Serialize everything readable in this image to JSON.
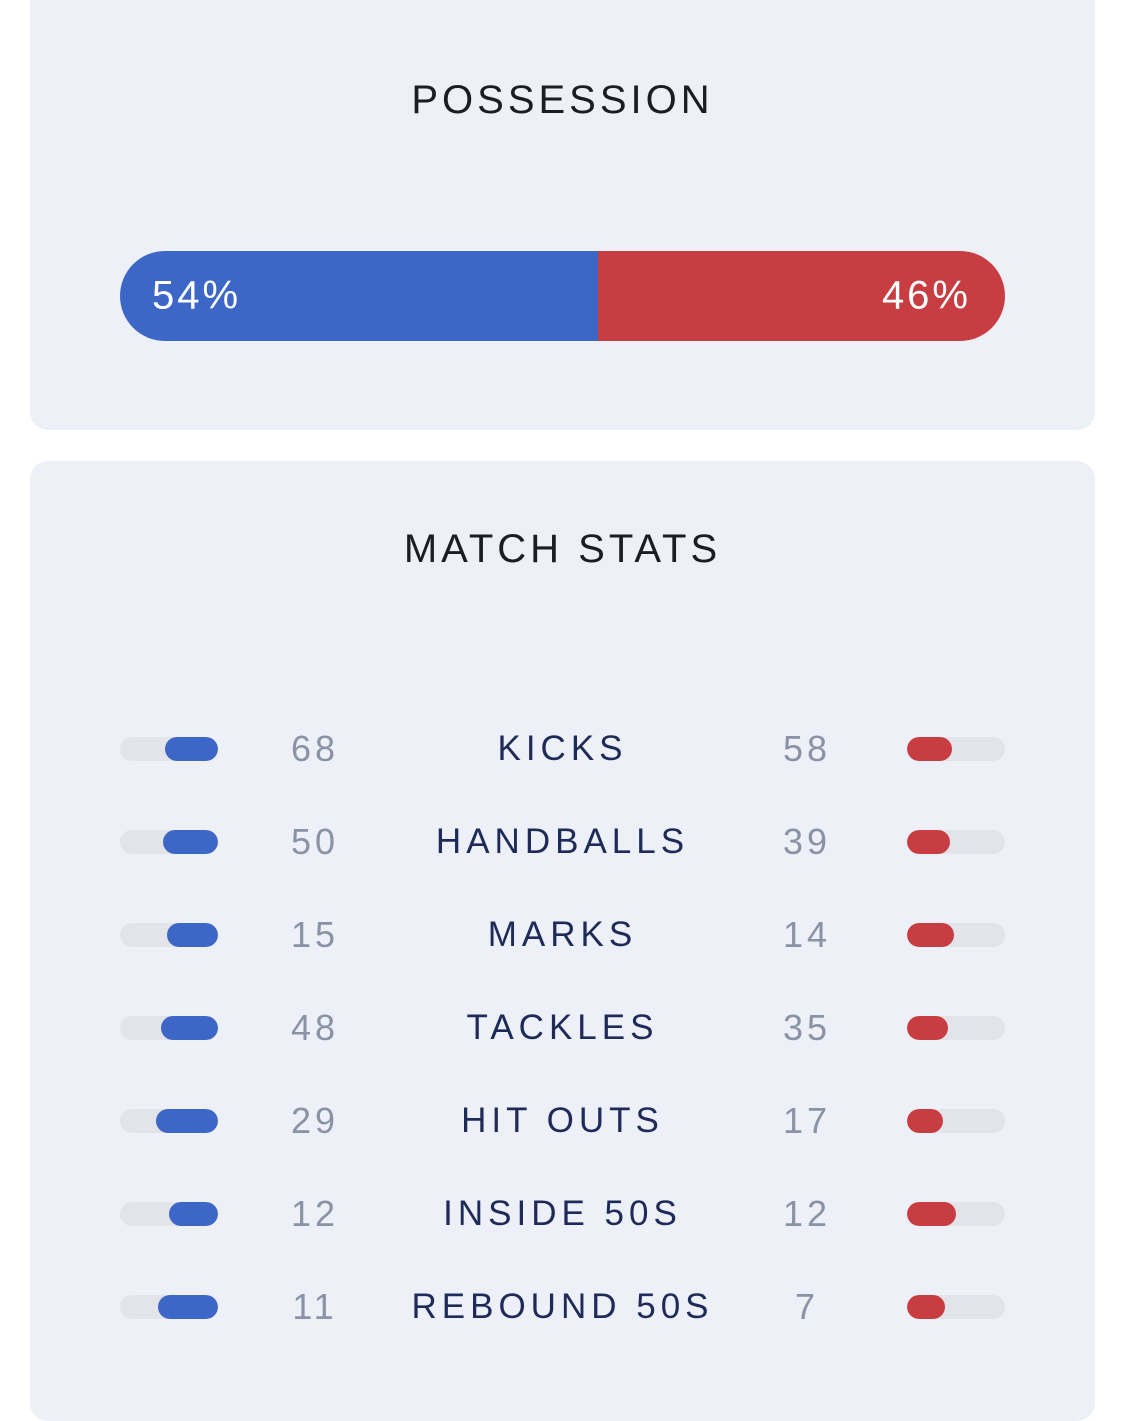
{
  "colors": {
    "home": "#3d67c6",
    "away": "#c73d41",
    "card_background": "#edf0f7"
  },
  "possession": {
    "title": "POSSESSION",
    "home_pct": 54,
    "away_pct": 46,
    "home_label": "54%",
    "away_label": "46%"
  },
  "match_stats": {
    "title": "MATCH STATS",
    "rows": [
      {
        "label": "KICKS",
        "home": "68",
        "away": "58",
        "home_fill": 0.54,
        "away_fill": 0.46
      },
      {
        "label": "HANDBALLS",
        "home": "50",
        "away": "39",
        "home_fill": 0.56,
        "away_fill": 0.44
      },
      {
        "label": "MARKS",
        "home": "15",
        "away": "14",
        "home_fill": 0.52,
        "away_fill": 0.48
      },
      {
        "label": "TACKLES",
        "home": "48",
        "away": "35",
        "home_fill": 0.58,
        "away_fill": 0.42
      },
      {
        "label": "HIT OUTS",
        "home": "29",
        "away": "17",
        "home_fill": 0.63,
        "away_fill": 0.37
      },
      {
        "label": "INSIDE 50S",
        "home": "12",
        "away": "12",
        "home_fill": 0.5,
        "away_fill": 0.5
      },
      {
        "label": "REBOUND 50S",
        "home": "11",
        "away": "7",
        "home_fill": 0.61,
        "away_fill": 0.39
      }
    ]
  }
}
